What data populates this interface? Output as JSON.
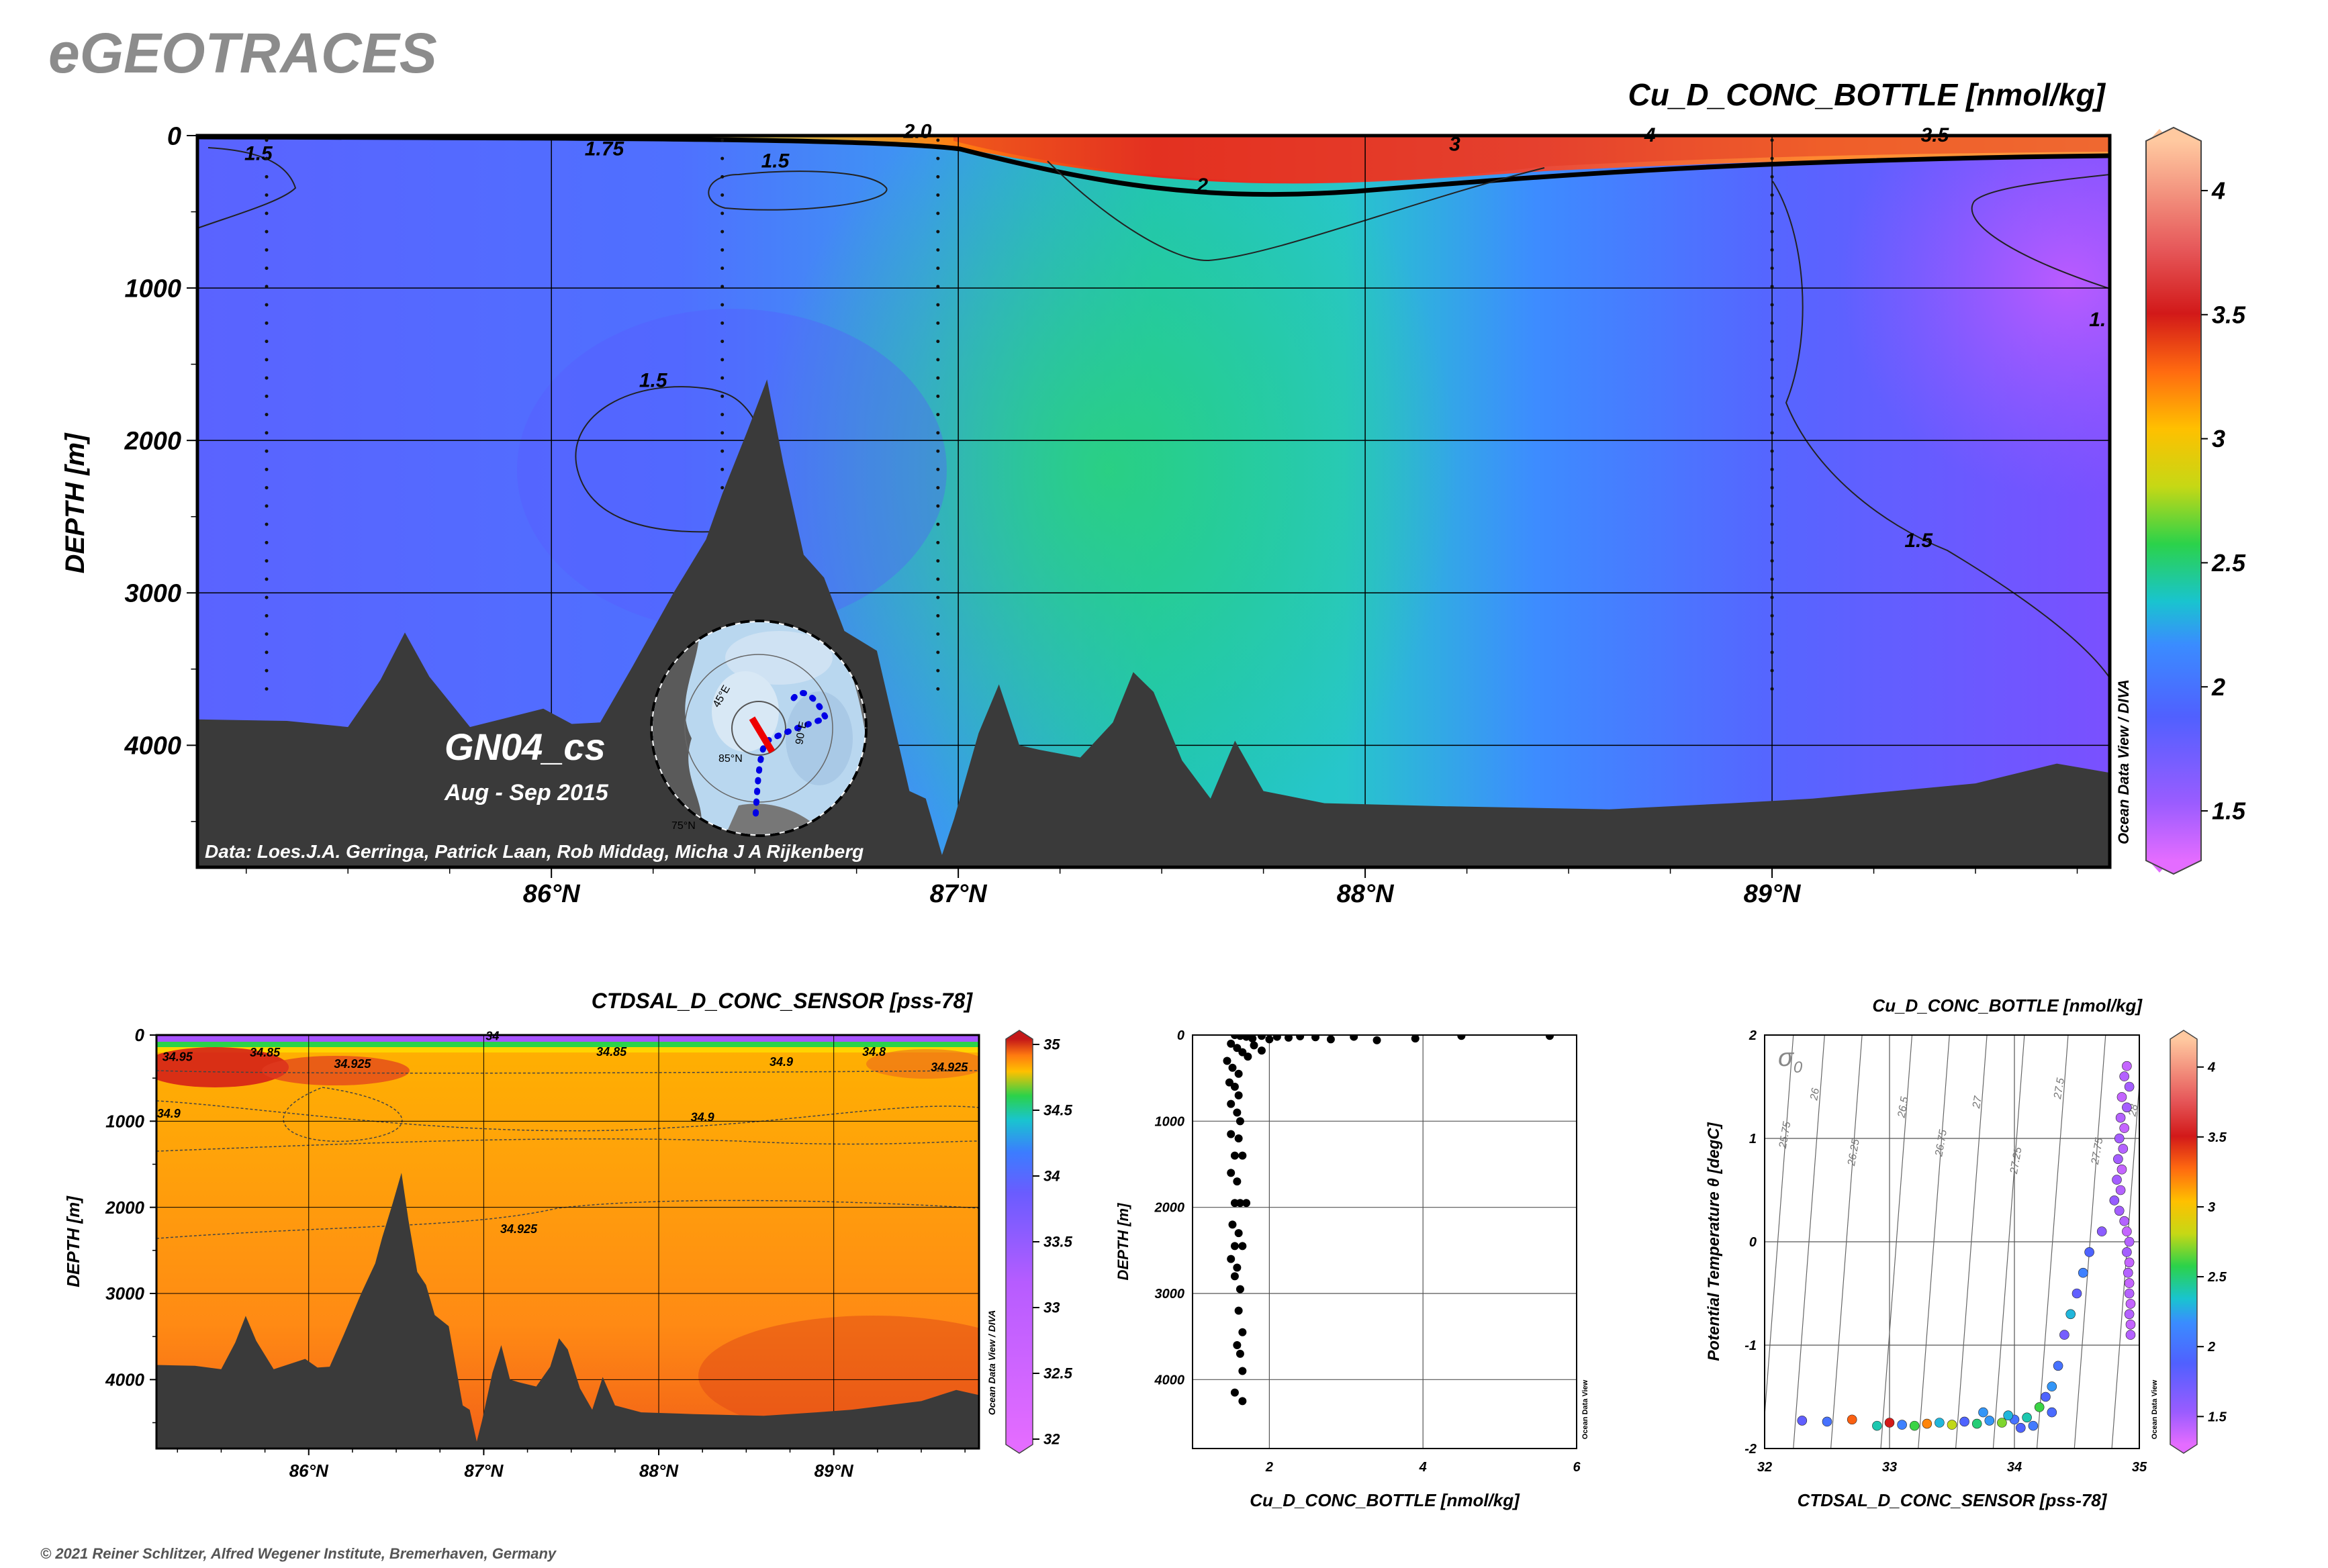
{
  "header": {
    "logo": "eGEOTRACES",
    "copyright": "© 2021 Reiner Schlitzer, Alfred Wegener Institute, Bremerhaven, Germany"
  },
  "main_section": {
    "title": "Cu_D_CONC_BOTTLE [nmol/kg]",
    "ylabel": "DEPTH [m]",
    "cruise": "GN04_cs",
    "dates": "Aug - Sep 2015",
    "credit": "Data: Loes.J.A. Gerringa, Patrick Laan, Rob Middag, Micha J A Rijkenberg",
    "odv_label": "Ocean Data View / DIVA",
    "map_labels": [
      "85°N",
      "90°E",
      "75°N",
      "45°E"
    ],
    "colorbar_ticks": [
      "1.5",
      "2",
      "2.5",
      "3",
      "3.5",
      "4"
    ]
  },
  "salinity_section": {
    "title": "CTDSAL_D_CONC_SENSOR [pss-78]",
    "ylabel": "DEPTH [m]",
    "odv_label": "Ocean Data View / DIVA",
    "colorbar_ticks": [
      "32",
      "32.5",
      "33",
      "33.5",
      "34",
      "34.5",
      "35"
    ]
  },
  "profile_plot": {
    "xlabel": "Cu_D_CONC_BOTTLE [nmol/kg]",
    "ylabel": "DEPTH [m]",
    "odv_label": "Ocean Data View"
  },
  "ts_plot": {
    "title": "Cu_D_CONC_BOTTLE [nmol/kg]",
    "xlabel": "CTDSAL_D_CONC_SENSOR [pss-78]",
    "ylabel": "Potential Temperature θ [degC]",
    "sigma_symbol": "σ",
    "sigma_sub": "0",
    "odv_label": "Ocean Data View",
    "colorbar_ticks": [
      "1.5",
      "2",
      "2.5",
      "3",
      "3.5",
      "4"
    ]
  },
  "chart_data": [
    {
      "type": "heatmap",
      "title": "Cu_D_CONC_BOTTLE [nmol/kg]",
      "xlabel": "",
      "ylabel": "DEPTH [m]",
      "x_ticks": [
        "86°N",
        "87°N",
        "88°N",
        "89°N"
      ],
      "y_ticks": [
        "0",
        "1000",
        "2000",
        "3000",
        "4000"
      ],
      "xlim": [
        85.13,
        89.83
      ],
      "ylim": [
        4800,
        0
      ],
      "colorbar": {
        "range": [
          1.3,
          4.2
        ],
        "ticks": [
          1.5,
          2,
          2.5,
          3,
          3.5,
          4
        ]
      },
      "contour_labels": [
        {
          "text": "1.5",
          "lat": 85.28,
          "depth": 160
        },
        {
          "text": "1.75",
          "lat": 86.13,
          "depth": 130
        },
        {
          "text": "1.5",
          "lat": 86.55,
          "depth": 210
        },
        {
          "text": "2.0",
          "lat": 86.9,
          "depth": 15
        },
        {
          "text": "2",
          "lat": 87.6,
          "depth": 370
        },
        {
          "text": "3",
          "lat": 88.22,
          "depth": 100
        },
        {
          "text": "4",
          "lat": 88.7,
          "depth": 40
        },
        {
          "text": "3.5",
          "lat": 89.4,
          "depth": 40
        },
        {
          "text": "1.5",
          "lat": 86.25,
          "depth": 1650
        },
        {
          "text": "1.5",
          "lat": 89.36,
          "depth": 2700
        },
        {
          "text": "1.",
          "lat": 89.8,
          "depth": 1250
        }
      ],
      "stations_lat": [
        85.3,
        86.42,
        86.95,
        89.0
      ],
      "bathymetry": {
        "lat": [
          85.13,
          85.35,
          85.5,
          85.58,
          85.64,
          85.7,
          85.8,
          85.98,
          86.05,
          86.12,
          86.2,
          86.3,
          86.38,
          86.42,
          86.48,
          86.53,
          86.57,
          86.62,
          86.67,
          86.72,
          86.8,
          86.88,
          86.92,
          86.96,
          86.99,
          87.05,
          87.1,
          87.15,
          87.2,
          87.3,
          87.38,
          87.43,
          87.48,
          87.55,
          87.62,
          87.68,
          87.75,
          87.9,
          88.2,
          88.6,
          88.9,
          89.1,
          89.3,
          89.5,
          89.7,
          89.83
        ],
        "depth": [
          3830,
          3840,
          3880,
          3570,
          3260,
          3550,
          3880,
          3760,
          3860,
          3850,
          3480,
          3000,
          2650,
          2350,
          1950,
          1600,
          2150,
          2750,
          2900,
          3250,
          3380,
          4300,
          4350,
          4720,
          4480,
          3920,
          3600,
          4000,
          4030,
          4080,
          3850,
          3520,
          3650,
          4100,
          4350,
          3970,
          4300,
          4380,
          4400,
          4420,
          4380,
          4350,
          4300,
          4250,
          4120,
          4180
        ]
      }
    },
    {
      "type": "heatmap",
      "title": "CTDSAL_D_CONC_SENSOR [pss-78]",
      "xlabel": "",
      "ylabel": "DEPTH [m]",
      "x_ticks": [
        "86°N",
        "87°N",
        "88°N",
        "89°N"
      ],
      "y_ticks": [
        "0",
        "1000",
        "2000",
        "3000",
        "4000"
      ],
      "xlim": [
        85.13,
        89.83
      ],
      "ylim": [
        4800,
        0
      ],
      "colorbar": {
        "range": [
          32,
          35
        ],
        "ticks": [
          32,
          32.5,
          33,
          33.5,
          34,
          34.5,
          35
        ]
      },
      "contour_labels": [
        {
          "text": "34.95",
          "lat": 85.25,
          "depth": 300
        },
        {
          "text": "34.85",
          "lat": 85.75,
          "depth": 250
        },
        {
          "text": "34.925",
          "lat": 86.25,
          "depth": 380
        },
        {
          "text": "34",
          "lat": 87.05,
          "depth": 60
        },
        {
          "text": "34.85",
          "lat": 87.73,
          "depth": 240
        },
        {
          "text": "34.9",
          "lat": 88.7,
          "depth": 360
        },
        {
          "text": "34.8",
          "lat": 89.23,
          "depth": 240
        },
        {
          "text": "34.925",
          "lat": 89.66,
          "depth": 420
        },
        {
          "text": "34.9",
          "lat": 85.2,
          "depth": 960
        },
        {
          "text": "34.9",
          "lat": 88.25,
          "depth": 1000
        },
        {
          "text": "34.925",
          "lat": 87.2,
          "depth": 2300
        }
      ]
    },
    {
      "type": "scatter",
      "title": "",
      "xlabel": "Cu_D_CONC_BOTTLE [nmol/kg]",
      "ylabel": "DEPTH [m]",
      "x_ticks": [
        "2",
        "4",
        "6"
      ],
      "y_ticks": [
        "0",
        "1000",
        "2000",
        "3000",
        "4000"
      ],
      "xlim": [
        1,
        6
      ],
      "ylim": [
        4800,
        0
      ],
      "points": [
        [
          1.55,
          0
        ],
        [
          1.62,
          10
        ],
        [
          1.7,
          20
        ],
        [
          1.78,
          40
        ],
        [
          1.9,
          10
        ],
        [
          2.0,
          50
        ],
        [
          2.1,
          20
        ],
        [
          2.25,
          30
        ],
        [
          2.4,
          15
        ],
        [
          2.6,
          25
        ],
        [
          2.8,
          50
        ],
        [
          3.1,
          20
        ],
        [
          3.4,
          60
        ],
        [
          3.9,
          40
        ],
        [
          4.5,
          10
        ],
        [
          5.65,
          10
        ],
        [
          1.5,
          100
        ],
        [
          1.58,
          150
        ],
        [
          1.65,
          200
        ],
        [
          1.72,
          250
        ],
        [
          1.8,
          120
        ],
        [
          1.9,
          180
        ],
        [
          1.45,
          300
        ],
        [
          1.52,
          380
        ],
        [
          1.6,
          450
        ],
        [
          1.48,
          550
        ],
        [
          1.55,
          600
        ],
        [
          1.6,
          700
        ],
        [
          1.5,
          800
        ],
        [
          1.58,
          900
        ],
        [
          1.62,
          1000
        ],
        [
          1.5,
          1150
        ],
        [
          1.6,
          1200
        ],
        [
          1.55,
          1400
        ],
        [
          1.65,
          1400
        ],
        [
          1.5,
          1600
        ],
        [
          1.58,
          1700
        ],
        [
          1.55,
          1950
        ],
        [
          1.62,
          1950
        ],
        [
          1.7,
          1950
        ],
        [
          1.52,
          2200
        ],
        [
          1.6,
          2300
        ],
        [
          1.55,
          2450
        ],
        [
          1.65,
          2450
        ],
        [
          1.5,
          2600
        ],
        [
          1.58,
          2700
        ],
        [
          1.55,
          2800
        ],
        [
          1.62,
          2950
        ],
        [
          1.6,
          3200
        ],
        [
          1.65,
          3450
        ],
        [
          1.58,
          3600
        ],
        [
          1.62,
          3700
        ],
        [
          1.65,
          3900
        ],
        [
          1.55,
          4150
        ],
        [
          1.65,
          4250
        ]
      ]
    },
    {
      "type": "scatter",
      "title": "Cu_D_CONC_BOTTLE [nmol/kg]",
      "xlabel": "CTDSAL_D_CONC_SENSOR [pss-78]",
      "ylabel": "Potential Temperature θ [degC]",
      "x_ticks": [
        "32",
        "33",
        "34",
        "35"
      ],
      "y_ticks": [
        "-2",
        "-1",
        "0",
        "1",
        "2"
      ],
      "xlim": [
        32,
        35
      ],
      "ylim": [
        -2,
        2
      ],
      "isopycnal_labels": [
        "25.75",
        "26",
        "26.25",
        "26.5",
        "26.75",
        "27",
        "27.25",
        "27.5",
        "27.75",
        "28"
      ],
      "colorbar": {
        "range": [
          1.3,
          4.2
        ],
        "ticks": [
          1.5,
          2,
          2.5,
          3,
          3.5,
          4
        ]
      },
      "points": [
        [
          34.9,
          1.7,
          1.4
        ],
        [
          34.88,
          1.6,
          1.45
        ],
        [
          34.92,
          1.5,
          1.5
        ],
        [
          34.86,
          1.4,
          1.4
        ],
        [
          34.9,
          1.3,
          1.5
        ],
        [
          34.85,
          1.2,
          1.45
        ],
        [
          34.88,
          1.1,
          1.4
        ],
        [
          34.84,
          1.0,
          1.5
        ],
        [
          34.87,
          0.9,
          1.45
        ],
        [
          34.83,
          0.8,
          1.5
        ],
        [
          34.86,
          0.7,
          1.4
        ],
        [
          34.82,
          0.6,
          1.5
        ],
        [
          34.85,
          0.5,
          1.45
        ],
        [
          34.8,
          0.4,
          1.55
        ],
        [
          34.84,
          0.3,
          1.5
        ],
        [
          34.88,
          0.2,
          1.45
        ],
        [
          34.9,
          0.1,
          1.4
        ],
        [
          34.92,
          0.0,
          1.45
        ],
        [
          34.9,
          -0.1,
          1.5
        ],
        [
          34.92,
          -0.2,
          1.4
        ],
        [
          34.91,
          -0.3,
          1.45
        ],
        [
          34.92,
          -0.4,
          1.4
        ],
        [
          34.92,
          -0.5,
          1.45
        ],
        [
          34.93,
          -0.6,
          1.4
        ],
        [
          34.92,
          -0.7,
          1.45
        ],
        [
          34.93,
          -0.8,
          1.4
        ],
        [
          34.93,
          -0.9,
          1.45
        ],
        [
          34.7,
          0.1,
          1.6
        ],
        [
          34.6,
          -0.1,
          1.9
        ],
        [
          34.55,
          -0.3,
          2.1
        ],
        [
          34.5,
          -0.5,
          1.8
        ],
        [
          34.45,
          -0.7,
          2.3
        ],
        [
          34.4,
          -0.9,
          1.7
        ],
        [
          34.35,
          -1.2,
          2.0
        ],
        [
          34.3,
          -1.4,
          2.2
        ],
        [
          34.25,
          -1.5,
          1.9
        ],
        [
          34.2,
          -1.6,
          2.6
        ],
        [
          34.1,
          -1.7,
          2.4
        ],
        [
          34.0,
          -1.72,
          2.0
        ],
        [
          33.9,
          -1.75,
          2.7
        ],
        [
          33.8,
          -1.73,
          2.2
        ],
        [
          33.7,
          -1.76,
          2.5
        ],
        [
          33.6,
          -1.74,
          1.9
        ],
        [
          33.5,
          -1.77,
          2.8
        ],
        [
          33.4,
          -1.75,
          2.3
        ],
        [
          33.3,
          -1.76,
          3.2
        ],
        [
          33.2,
          -1.78,
          2.6
        ],
        [
          33.1,
          -1.77,
          2.1
        ],
        [
          33.0,
          -1.75,
          3.5
        ],
        [
          32.9,
          -1.78,
          2.4
        ],
        [
          32.7,
          -1.72,
          3.3
        ],
        [
          32.5,
          -1.74,
          2.0
        ],
        [
          32.3,
          -1.73,
          1.8
        ],
        [
          34.3,
          -1.65,
          1.95
        ],
        [
          34.15,
          -1.78,
          2.05
        ],
        [
          34.05,
          -1.8,
          1.9
        ],
        [
          33.95,
          -1.68,
          2.3
        ],
        [
          33.75,
          -1.65,
          2.2
        ]
      ]
    }
  ]
}
